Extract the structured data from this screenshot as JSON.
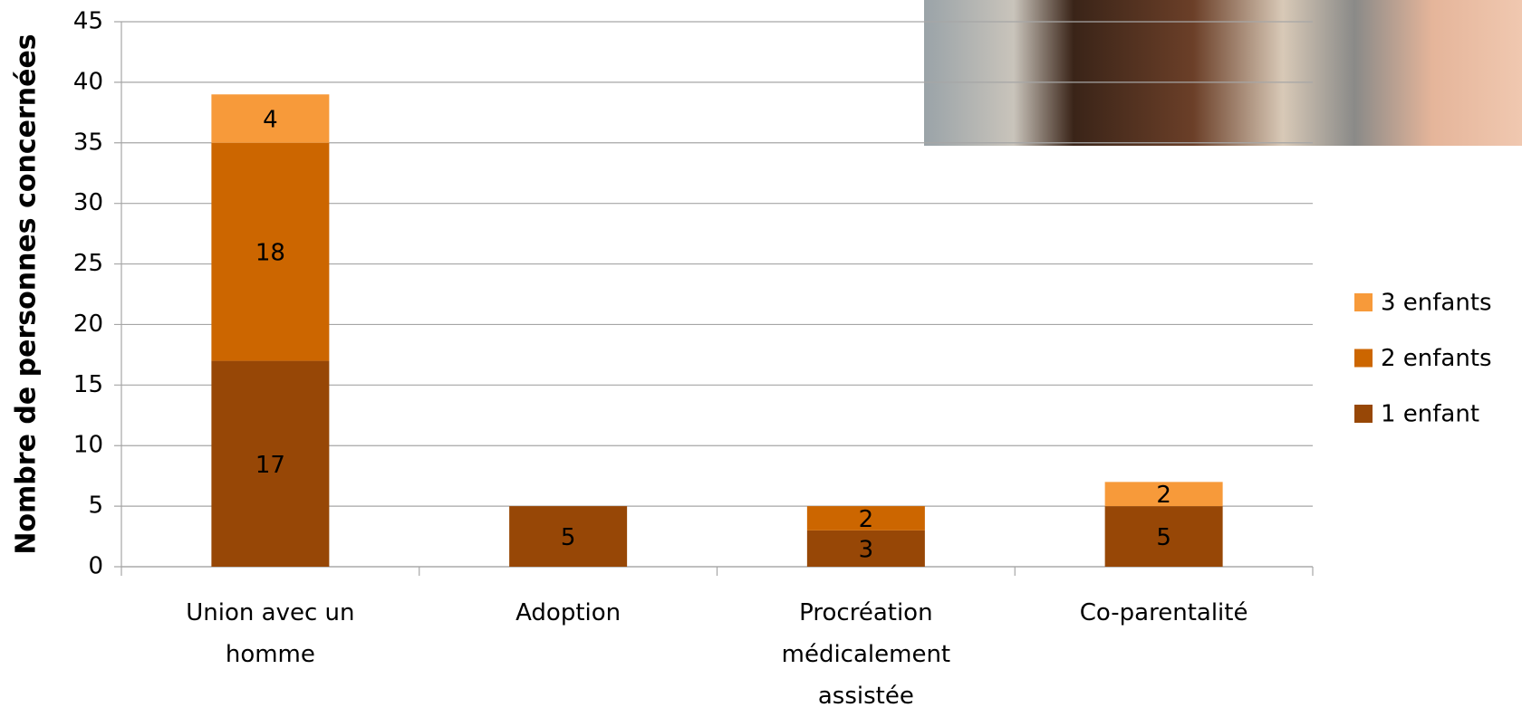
{
  "chart_data": {
    "type": "stacked-bar",
    "y_label": "Nombre de personnes concernées",
    "categories": [
      "Union avec un homme",
      "Adoption",
      "Procréation médicalement assistée",
      "Co-parentalité"
    ],
    "series": [
      {
        "name": "1 enfant",
        "color": "#974706",
        "values": [
          17,
          5,
          3,
          5
        ]
      },
      {
        "name": "2 enfants",
        "color": "#cc6600",
        "values": [
          18,
          null,
          2,
          null
        ]
      },
      {
        "name": "3 enfants",
        "color": "#f79a3a",
        "values": [
          4,
          null,
          null,
          2
        ]
      }
    ],
    "ylim": [
      0,
      45
    ],
    "yticks": [
      0,
      5,
      10,
      15,
      20,
      25,
      30,
      35,
      40,
      45
    ],
    "grid": true,
    "legend": "right"
  }
}
